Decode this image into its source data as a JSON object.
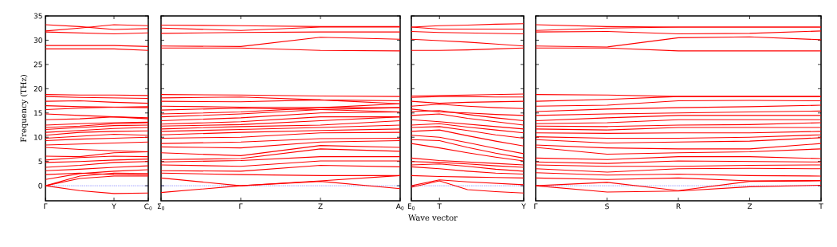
{
  "chart_data": [
    {
      "type": "line",
      "ylabel": "Frequency (THz)",
      "categories": [
        "Γ",
        null,
        "Y",
        "C$_{0}$"
      ],
      "ylim": [
        -3.1,
        35
      ],
      "yticks": [
        0,
        5,
        10,
        15,
        20,
        25,
        30,
        35
      ],
      "ref_lines": [
        {
          "axis": "y",
          "value": 0,
          "color": "#0000ff",
          "line_style": "dotted"
        }
      ],
      "series": [
        {
          "color": "#ff0000",
          "values": [
            0,
            -1.0,
            -1.6,
            -1.5
          ]
        },
        {
          "color": "#ff0000",
          "values": [
            0,
            1.5,
            2.0,
            2.0
          ]
        },
        {
          "color": "#ff0000",
          "values": [
            0,
            2.0,
            2.6,
            2.5
          ]
        },
        {
          "color": "#ff0000",
          "values": [
            1.3,
            2.5,
            3.0,
            3.3
          ]
        },
        {
          "color": "#ff0000",
          "values": [
            2.3,
            2.6,
            2.3,
            2.2
          ]
        },
        {
          "color": "#ff0000",
          "values": [
            3.1,
            3.4,
            3.8,
            4.1
          ]
        },
        {
          "color": "#ff0000",
          "values": [
            3.8,
            4.2,
            4.8,
            5.0
          ]
        },
        {
          "color": "#ff0000",
          "values": [
            4.8,
            5.0,
            5.3,
            5.5
          ]
        },
        {
          "color": "#ff0000",
          "values": [
            5.3,
            5.8,
            6.1,
            6.0
          ]
        },
        {
          "color": "#ff0000",
          "values": [
            6.1,
            6.0,
            6.8,
            7.0
          ]
        },
        {
          "color": "#ff0000",
          "values": [
            7.9,
            7.5,
            7.2,
            7.0
          ]
        },
        {
          "color": "#ff0000",
          "values": [
            8.4,
            8.6,
            8.8,
            9.0
          ]
        },
        {
          "color": "#ff0000",
          "values": [
            9.3,
            9.6,
            9.8,
            10.0
          ]
        },
        {
          "color": "#ff0000",
          "values": [
            9.8,
            10.2,
            10.6,
            10.4
          ]
        },
        {
          "color": "#ff0000",
          "values": [
            10.4,
            11.0,
            11.2,
            11.3
          ]
        },
        {
          "color": "#ff0000",
          "values": [
            11.0,
            11.4,
            11.8,
            12.0
          ]
        },
        {
          "color": "#ff0000",
          "values": [
            11.6,
            12.0,
            12.4,
            12.5
          ]
        },
        {
          "color": "#ff0000",
          "values": [
            12.0,
            12.3,
            12.8,
            13.0
          ]
        },
        {
          "color": "#ff0000",
          "values": [
            12.5,
            12.8,
            13.0,
            13.1
          ]
        },
        {
          "color": "#ff0000",
          "values": [
            13.6,
            13.8,
            14.2,
            14.0
          ]
        },
        {
          "color": "#ff0000",
          "values": [
            14.8,
            14.5,
            14.2,
            13.8
          ]
        },
        {
          "color": "#ff0000",
          "values": [
            15.7,
            16.0,
            16.2,
            16.3
          ]
        },
        {
          "color": "#ff0000",
          "values": [
            16.5,
            16.3,
            16.2,
            16.1
          ]
        },
        {
          "color": "#ff0000",
          "values": [
            17.4,
            17.5,
            17.2,
            17.0
          ]
        },
        {
          "color": "#ff0000",
          "values": [
            18.4,
            18.2,
            18.1,
            18.0
          ]
        },
        {
          "color": "#ff0000",
          "values": [
            18.8,
            18.7,
            18.7,
            18.6
          ]
        },
        {
          "color": "#ff0000",
          "values": [
            28.2,
            28.2,
            28.2,
            27.9
          ]
        },
        {
          "color": "#ff0000",
          "values": [
            28.9,
            28.9,
            28.9,
            28.7
          ]
        },
        {
          "color": "#ff0000",
          "values": [
            31.7,
            31.5,
            31.3,
            31.5
          ]
        },
        {
          "color": "#ff0000",
          "values": [
            31.9,
            32.5,
            33.2,
            33.0
          ]
        },
        {
          "color": "#ff0000",
          "values": [
            33.2,
            32.8,
            32.2,
            32.4
          ]
        }
      ]
    },
    {
      "type": "line",
      "tick_labels": "x",
      "categories": [
        "Σ$_{0}$",
        "Γ",
        "Z",
        "A$_{0}$"
      ],
      "ylim": [
        -3.1,
        35
      ],
      "yticks": [
        0,
        5,
        10,
        15,
        20,
        25,
        30,
        35
      ],
      "ref_lines": [
        {
          "axis": "y",
          "value": 0,
          "color": "#0000ff",
          "line_style": "dotted"
        }
      ],
      "series": [
        {
          "color": "#ff0000",
          "values": [
            -1.4,
            0,
            0.9,
            -0.6
          ]
        },
        {
          "color": "#ff0000",
          "values": [
            1.6,
            0,
            1.0,
            2.1
          ]
        },
        {
          "color": "#ff0000",
          "values": [
            2.6,
            2.3,
            2.1,
            2.1
          ]
        },
        {
          "color": "#ff0000",
          "values": [
            3.1,
            3.0,
            4.2,
            3.9
          ]
        },
        {
          "color": "#ff0000",
          "values": [
            4.3,
            4.0,
            5.1,
            5.1
          ]
        },
        {
          "color": "#ff0000",
          "values": [
            4.9,
            5.2,
            6.0,
            6.0
          ]
        },
        {
          "color": "#ff0000",
          "values": [
            5.4,
            5.6,
            7.6,
            7.1
          ]
        },
        {
          "color": "#ff0000",
          "values": [
            6.8,
            6.2,
            8.3,
            7.9
          ]
        },
        {
          "color": "#ff0000",
          "values": [
            8.0,
            7.8,
            9.0,
            9.3
          ]
        },
        {
          "color": "#ff0000",
          "values": [
            8.7,
            9.0,
            9.7,
            9.8
          ]
        },
        {
          "color": "#ff0000",
          "values": [
            9.8,
            10.0,
            10.9,
            11.0
          ]
        },
        {
          "color": "#ff0000",
          "values": [
            10.5,
            11.0,
            11.4,
            11.7
          ]
        },
        {
          "color": "#ff0000",
          "values": [
            11.2,
            11.6,
            12.0,
            12.5
          ]
        },
        {
          "color": "#ff0000",
          "values": [
            11.7,
            12.2,
            12.5,
            13.4
          ]
        },
        {
          "color": "#ff0000",
          "values": [
            12.3,
            12.6,
            13.4,
            14.2
          ]
        },
        {
          "color": "#ff0000",
          "values": [
            12.7,
            13.2,
            14.2,
            14.2
          ]
        },
        {
          "color": "#ff0000",
          "values": [
            13.4,
            14.0,
            15.0,
            15.2
          ]
        },
        {
          "color": "#ff0000",
          "values": [
            14.2,
            14.8,
            15.7,
            16.1
          ]
        },
        {
          "color": "#ff0000",
          "values": [
            14.8,
            15.2,
            16.1,
            16.9
          ]
        },
        {
          "color": "#ff0000",
          "values": [
            15.6,
            16.0,
            15.7,
            15.2
          ]
        },
        {
          "color": "#ff0000",
          "values": [
            16.4,
            16.2,
            16.1,
            16.1
          ]
        },
        {
          "color": "#ff0000",
          "values": [
            17.4,
            17.3,
            17.7,
            16.9
          ]
        },
        {
          "color": "#ff0000",
          "values": [
            18.1,
            18.3,
            17.7,
            17.5
          ]
        },
        {
          "color": "#ff0000",
          "values": [
            18.8,
            18.7,
            18.5,
            18.4
          ]
        },
        {
          "color": "#ff0000",
          "values": [
            28.4,
            28.4,
            27.9,
            27.8
          ]
        },
        {
          "color": "#ff0000",
          "values": [
            28.8,
            28.7,
            30.6,
            30.2
          ]
        },
        {
          "color": "#ff0000",
          "values": [
            31.4,
            31.6,
            31.7,
            31.7
          ]
        },
        {
          "color": "#ff0000",
          "values": [
            32.5,
            32.0,
            32.7,
            32.7
          ]
        },
        {
          "color": "#ff0000",
          "values": [
            33.1,
            33.0,
            32.8,
            32.8
          ]
        }
      ]
    },
    {
      "type": "line",
      "tick_labels": "x",
      "xlabel": "Wave vector",
      "categories": [
        "E$_{0}$",
        "T",
        null,
        null,
        "Y"
      ],
      "ylim": [
        -3.1,
        35
      ],
      "yticks": [
        0,
        5,
        10,
        15,
        20,
        25,
        30,
        35
      ],
      "ref_lines": [
        {
          "axis": "y",
          "value": 0,
          "color": "#0000ff",
          "line_style": "dotted"
        }
      ],
      "series": [
        {
          "color": "#ff0000",
          "values": [
            -0.3,
            1.0,
            -0.8,
            -1.2,
            -1.5
          ]
        },
        {
          "color": "#ff0000",
          "values": [
            0,
            1.2,
            0.8,
            0.5,
            0.2
          ]
        },
        {
          "color": "#ff0000",
          "values": [
            2.1,
            1.9,
            1.8,
            1.7,
            1.6
          ]
        },
        {
          "color": "#ff0000",
          "values": [
            3.9,
            3.5,
            3.0,
            2.6,
            2.4
          ]
        },
        {
          "color": "#ff0000",
          "values": [
            4.3,
            4.5,
            4.0,
            3.4,
            3.0
          ]
        },
        {
          "color": "#ff0000",
          "values": [
            5.0,
            4.8,
            4.5,
            4.1,
            3.8
          ]
        },
        {
          "color": "#ff0000",
          "values": [
            5.7,
            5.2,
            4.9,
            4.6,
            4.3
          ]
        },
        {
          "color": "#ff0000",
          "values": [
            8.7,
            7.8,
            6.8,
            5.9,
            5.1
          ]
        },
        {
          "color": "#ff0000",
          "values": [
            9.5,
            9.3,
            7.9,
            6.7,
            5.7
          ]
        },
        {
          "color": "#ff0000",
          "values": [
            10.4,
            10.0,
            8.9,
            7.7,
            6.6
          ]
        },
        {
          "color": "#ff0000",
          "values": [
            11.2,
            11.5,
            10.3,
            9.2,
            8.2
          ]
        },
        {
          "color": "#ff0000",
          "values": [
            12.0,
            12.2,
            11.4,
            10.5,
            9.8
          ]
        },
        {
          "color": "#ff0000",
          "values": [
            12.5,
            12.8,
            12.1,
            11.5,
            10.9
          ]
        },
        {
          "color": "#ff0000",
          "values": [
            13.6,
            13.2,
            12.7,
            12.2,
            11.7
          ]
        },
        {
          "color": "#ff0000",
          "values": [
            14.5,
            14.8,
            13.9,
            13.2,
            12.5
          ]
        },
        {
          "color": "#ff0000",
          "values": [
            15.3,
            15.5,
            14.7,
            14.0,
            13.4
          ]
        },
        {
          "color": "#ff0000",
          "values": [
            15.8,
            15.2,
            15.0,
            14.7,
            14.5
          ]
        },
        {
          "color": "#ff0000",
          "values": [
            16.4,
            16.8,
            16.4,
            16.1,
            15.9
          ]
        },
        {
          "color": "#ff0000",
          "values": [
            17.4,
            17.0,
            17.2,
            17.3,
            17.4
          ]
        },
        {
          "color": "#ff0000",
          "values": [
            18.2,
            18.4,
            18.4,
            18.3,
            18.3
          ]
        },
        {
          "color": "#ff0000",
          "values": [
            18.5,
            18.6,
            18.7,
            18.8,
            18.9
          ]
        },
        {
          "color": "#ff0000",
          "values": [
            27.9,
            27.9,
            28.0,
            28.2,
            28.4
          ]
        },
        {
          "color": "#ff0000",
          "values": [
            30.2,
            29.9,
            29.6,
            29.2,
            28.8
          ]
        },
        {
          "color": "#ff0000",
          "values": [
            31.8,
            31.6,
            31.5,
            31.4,
            31.3
          ]
        },
        {
          "color": "#ff0000",
          "values": [
            32.7,
            32.3,
            32.3,
            32.3,
            32.3
          ]
        },
        {
          "color": "#ff0000",
          "values": [
            32.7,
            33.0,
            33.1,
            33.3,
            33.4
          ]
        }
      ]
    },
    {
      "type": "line",
      "tick_labels": "x",
      "categories": [
        "Γ",
        "S",
        "R",
        "Z",
        "T"
      ],
      "ylim": [
        -3.1,
        35
      ],
      "yticks": [
        0,
        5,
        10,
        15,
        20,
        25,
        30,
        35
      ],
      "ref_lines": [
        {
          "axis": "y",
          "value": 0,
          "color": "#0000ff",
          "line_style": "dotted"
        }
      ],
      "series": [
        {
          "color": "#ff0000",
          "values": [
            0,
            0.7,
            -1.0,
            0.9,
            1.0
          ]
        },
        {
          "color": "#ff0000",
          "values": [
            0,
            -1.3,
            -1.1,
            -0.2,
            0.1
          ]
        },
        {
          "color": "#ff0000",
          "values": [
            1.6,
            1.3,
            1.6,
            1.0,
            1.1
          ]
        },
        {
          "color": "#ff0000",
          "values": [
            2.7,
            2.2,
            2.4,
            2.1,
            2.0
          ]
        },
        {
          "color": "#ff0000",
          "values": [
            3.5,
            2.8,
            3.5,
            3.6,
            3.5
          ]
        },
        {
          "color": "#ff0000",
          "values": [
            4.3,
            4.0,
            4.0,
            4.2,
            4.3
          ]
        },
        {
          "color": "#ff0000",
          "values": [
            4.9,
            4.6,
            5.1,
            5.0,
            4.9
          ]
        },
        {
          "color": "#ff0000",
          "values": [
            5.7,
            5.4,
            6.0,
            6.0,
            5.6
          ]
        },
        {
          "color": "#ff0000",
          "values": [
            7.9,
            6.5,
            6.8,
            7.0,
            7.6
          ]
        },
        {
          "color": "#ff0000",
          "values": [
            8.4,
            7.8,
            7.6,
            7.6,
            8.7
          ]
        },
        {
          "color": "#ff0000",
          "values": [
            9.5,
            8.8,
            9.0,
            9.2,
            9.9
          ]
        },
        {
          "color": "#ff0000",
          "values": [
            10.1,
            9.8,
            9.8,
            10.0,
            10.5
          ]
        },
        {
          "color": "#ff0000",
          "values": [
            10.9,
            10.8,
            10.9,
            10.9,
            11.2
          ]
        },
        {
          "color": "#ff0000",
          "values": [
            11.7,
            11.5,
            12.0,
            12.0,
            12.0
          ]
        },
        {
          "color": "#ff0000",
          "values": [
            12.3,
            12.2,
            12.5,
            12.6,
            13.0
          ]
        },
        {
          "color": "#ff0000",
          "values": [
            12.8,
            13.0,
            13.6,
            13.6,
            13.6
          ]
        },
        {
          "color": "#ff0000",
          "values": [
            13.4,
            14.0,
            14.5,
            14.5,
            14.5
          ]
        },
        {
          "color": "#ff0000",
          "values": [
            14.5,
            14.8,
            15.0,
            15.2,
            15.4
          ]
        },
        {
          "color": "#ff0000",
          "values": [
            15.3,
            15.8,
            16.1,
            16.3,
            16.6
          ]
        },
        {
          "color": "#ff0000",
          "values": [
            16.4,
            16.6,
            17.5,
            17.6,
            17.5
          ]
        },
        {
          "color": "#ff0000",
          "values": [
            17.4,
            17.8,
            18.4,
            18.4,
            18.4
          ]
        },
        {
          "color": "#ff0000",
          "values": [
            18.8,
            18.7,
            18.4,
            18.4,
            18.4
          ]
        },
        {
          "color": "#ff0000",
          "values": [
            28.4,
            28.4,
            27.8,
            27.8,
            27.8
          ]
        },
        {
          "color": "#ff0000",
          "values": [
            28.8,
            28.6,
            30.5,
            30.7,
            30.1
          ]
        },
        {
          "color": "#ff0000",
          "values": [
            31.7,
            31.8,
            31.3,
            31.4,
            31.9
          ]
        },
        {
          "color": "#ff0000",
          "values": [
            32.0,
            32.5,
            32.7,
            32.7,
            32.7
          ]
        },
        {
          "color": "#ff0000",
          "values": [
            33.2,
            32.8,
            32.7,
            32.7,
            32.7
          ]
        }
      ]
    }
  ]
}
